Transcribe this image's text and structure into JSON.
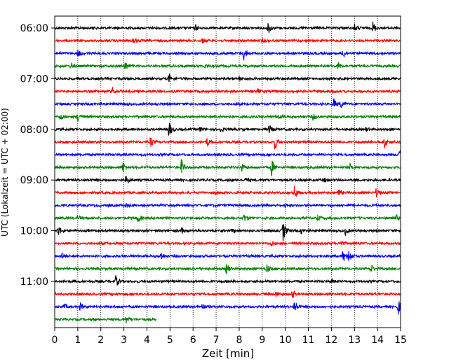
{
  "chart_data": {
    "type": "line",
    "title": "",
    "xlabel": "Zeit  [min]",
    "ylabel": "UTC (Lokalzeit = UTC + 02:00)",
    "xlim": [
      0,
      15
    ],
    "xticks": [
      0,
      1,
      2,
      3,
      4,
      5,
      6,
      7,
      8,
      9,
      10,
      11,
      12,
      13,
      14,
      15
    ],
    "x_grid": "dotted",
    "yticks": [
      "06:00",
      "07:00",
      "08:00",
      "09:00",
      "10:00",
      "11:00"
    ],
    "ytick_rows": [
      0,
      4,
      8,
      12,
      16,
      20
    ],
    "row_minutes": 15,
    "color_cycle": [
      "#000000",
      "#ff0000",
      "#0000ff",
      "#008000"
    ],
    "rows": [
      {
        "start": "06:00",
        "end_min": 15,
        "events": [
          [
            6.1,
            0.5
          ],
          [
            9.25,
            1.1
          ],
          [
            13.0,
            0.6
          ],
          [
            13.8,
            1.0
          ]
        ]
      },
      {
        "start": "06:15",
        "end_min": 15,
        "events": [
          [
            3.4,
            0.7
          ],
          [
            6.4,
            0.4
          ],
          [
            9.0,
            0.3
          ]
        ]
      },
      {
        "start": "06:30",
        "end_min": 15,
        "events": [
          [
            1.0,
            0.6
          ],
          [
            8.2,
            1.2
          ],
          [
            12.5,
            0.9
          ]
        ]
      },
      {
        "start": "06:45",
        "end_min": 15,
        "events": [
          [
            0.7,
            0.5
          ],
          [
            3.05,
            0.8
          ],
          [
            6.5,
            0.3
          ],
          [
            12.3,
            0.6
          ]
        ]
      },
      {
        "start": "07:00",
        "end_min": 15,
        "events": [
          [
            4.95,
            0.8
          ],
          [
            8.0,
            0.3
          ]
        ]
      },
      {
        "start": "07:15",
        "end_min": 15,
        "events": [
          [
            2.5,
            0.6
          ],
          [
            8.8,
            0.4
          ],
          [
            12.0,
            0.3
          ]
        ]
      },
      {
        "start": "07:30",
        "end_min": 15,
        "events": [
          [
            3.0,
            0.3
          ],
          [
            12.1,
            0.9
          ],
          [
            12.4,
            0.6
          ]
        ]
      },
      {
        "start": "07:45",
        "end_min": 15,
        "events": [
          [
            0.25,
            0.7
          ],
          [
            1.0,
            0.9
          ],
          [
            9.7,
            0.4
          ],
          [
            11.2,
            0.5
          ]
        ]
      },
      {
        "start": "08:00",
        "end_min": 15,
        "events": [
          [
            4.95,
            1.6
          ],
          [
            6.3,
            0.4
          ],
          [
            7.2,
            0.4
          ],
          [
            9.3,
            0.7
          ],
          [
            13.5,
            0.3
          ]
        ]
      },
      {
        "start": "08:15",
        "end_min": 15,
        "events": [
          [
            4.15,
            0.8
          ],
          [
            6.6,
            0.8
          ],
          [
            9.55,
            1.3
          ],
          [
            14.3,
            1.0
          ]
        ]
      },
      {
        "start": "08:30",
        "end_min": 15,
        "events": [
          [
            14.95,
            0.8
          ]
        ]
      },
      {
        "start": "08:45",
        "end_min": 15,
        "events": [
          [
            2.95,
            1.0
          ],
          [
            5.5,
            1.4
          ],
          [
            8.1,
            0.6
          ],
          [
            9.4,
            1.4
          ],
          [
            12.8,
            0.5
          ]
        ]
      },
      {
        "start": "09:00",
        "end_min": 15,
        "events": [
          [
            3.1,
            0.9
          ],
          [
            8.3,
            0.4
          ],
          [
            11.7,
            0.3
          ]
        ]
      },
      {
        "start": "09:15",
        "end_min": 15,
        "events": [
          [
            7.0,
            0.3
          ],
          [
            10.4,
            1.2
          ],
          [
            12.3,
            0.7
          ],
          [
            13.95,
            0.9
          ]
        ]
      },
      {
        "start": "09:30",
        "end_min": 15,
        "events": [
          [
            3.1,
            0.3
          ],
          [
            10.0,
            0.3
          ]
        ]
      },
      {
        "start": "09:45",
        "end_min": 15,
        "events": [
          [
            1.0,
            0.4
          ],
          [
            3.6,
            0.8
          ],
          [
            8.2,
            0.6
          ],
          [
            11.4,
            0.6
          ],
          [
            14.8,
            0.5
          ]
        ]
      },
      {
        "start": "10:00",
        "end_min": 15,
        "events": [
          [
            0.15,
            1.0
          ],
          [
            5.5,
            0.4
          ],
          [
            7.7,
            0.4
          ],
          [
            9.9,
            1.8
          ],
          [
            10.7,
            0.5
          ],
          [
            12.6,
            0.7
          ]
        ]
      },
      {
        "start": "10:15",
        "end_min": 15,
        "events": [
          [
            9.4,
            0.5
          ],
          [
            12.4,
            0.6
          ]
        ]
      },
      {
        "start": "10:30",
        "end_min": 15,
        "events": [
          [
            0.3,
            0.5
          ],
          [
            4.6,
            0.7
          ],
          [
            12.5,
            1.1
          ],
          [
            12.75,
            1.2
          ]
        ]
      },
      {
        "start": "10:45",
        "end_min": 15,
        "events": [
          [
            7.45,
            1.0
          ],
          [
            9.2,
            0.8
          ],
          [
            13.7,
            0.9
          ]
        ]
      },
      {
        "start": "11:00",
        "end_min": 15,
        "events": [
          [
            2.65,
            0.9
          ],
          [
            12.0,
            0.4
          ]
        ]
      },
      {
        "start": "11:15",
        "end_min": 15,
        "events": [
          [
            9.6,
            0.5
          ],
          [
            10.3,
            0.7
          ]
        ]
      },
      {
        "start": "11:30",
        "end_min": 15,
        "events": [
          [
            0.4,
            0.5
          ],
          [
            1.1,
            0.6
          ],
          [
            6.4,
            0.5
          ],
          [
            10.4,
            1.2
          ],
          [
            14.9,
            1.2
          ]
        ]
      },
      {
        "start": "11:45",
        "end_min": 4.4,
        "events": [
          [
            3.1,
            0.6
          ]
        ]
      }
    ]
  }
}
